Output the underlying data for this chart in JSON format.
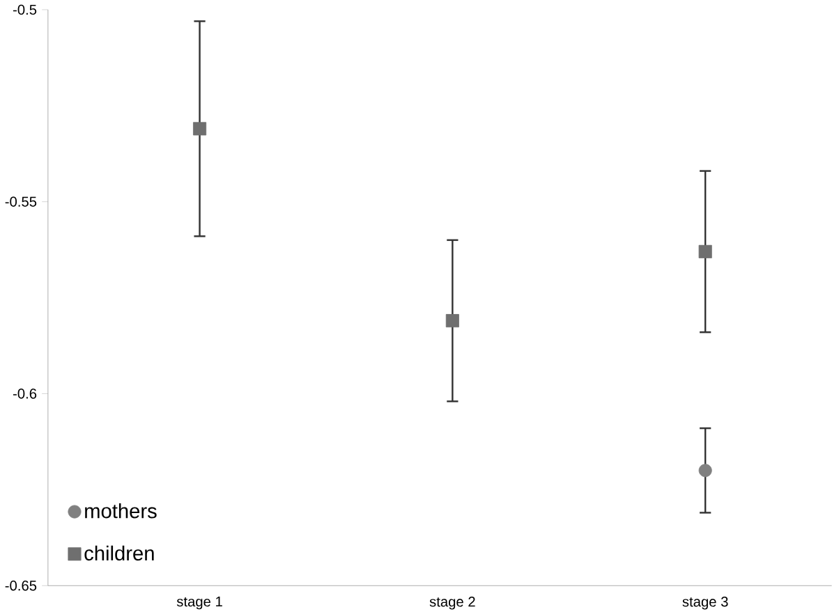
{
  "chart_data": {
    "type": "scatter",
    "categories": [
      "stage 1",
      "stage 2",
      "stage 3"
    ],
    "series": [
      {
        "name": "mothers",
        "color": "#808080",
        "marker": "circle",
        "values": [
          null,
          null,
          -0.62
        ],
        "errors": [
          null,
          null,
          0.011
        ]
      },
      {
        "name": "children",
        "color": "#6f6f6f",
        "marker": "square",
        "values": [
          -0.531,
          -0.581,
          -0.563
        ],
        "errors": [
          0.028,
          0.021,
          0.021
        ]
      }
    ],
    "ylim": [
      -0.65,
      -0.5
    ],
    "yticks": [
      -0.65,
      -0.6,
      -0.55,
      -0.5
    ],
    "grid": false,
    "legend": "bottom left"
  }
}
